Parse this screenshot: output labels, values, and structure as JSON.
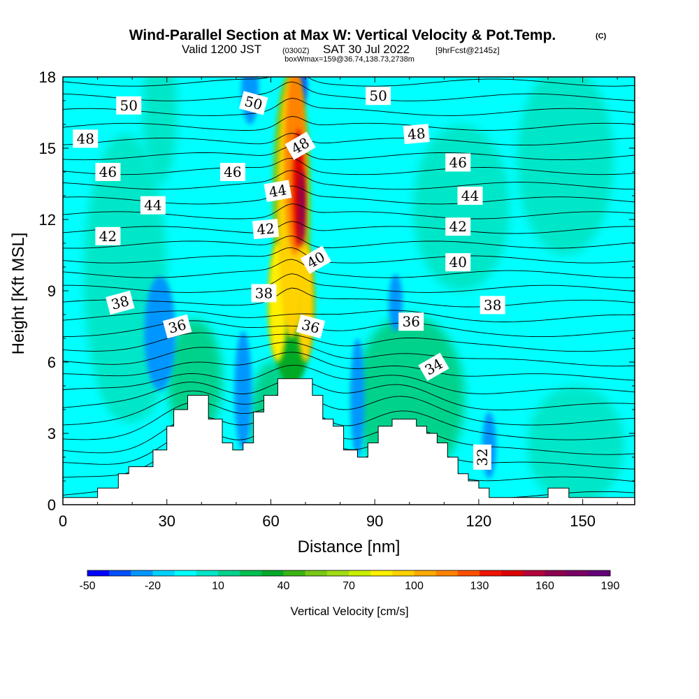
{
  "title": {
    "main": "Wind-Parallel Section at Max W: Vertical Velocity & Pot.Temp.",
    "copyright": "(C)",
    "valid_prefix": "Valid 1200 JST",
    "valid_utc": "(0300Z)",
    "valid_date": "SAT 30 Jul 2022",
    "forecast": "[9hrFcst@2145z]",
    "boxinfo": "boxWmax=159@36.74,138.73,2738m"
  },
  "chart_data": {
    "type": "heatmap",
    "xlabel": "Distance [nm]",
    "ylabel": "Height [Kft MSL]",
    "xlim": [
      0,
      165
    ],
    "ylim": [
      0,
      18
    ],
    "xticks": [
      0,
      30,
      60,
      90,
      120,
      150
    ],
    "yticks": [
      0,
      3,
      6,
      9,
      12,
      15,
      18
    ],
    "colorbar": {
      "label": "Vertical Velocity [cm/s]",
      "tick_labels": [
        "-50",
        "-20",
        "10",
        "40",
        "70",
        "100",
        "130",
        "160",
        "190"
      ],
      "colors": [
        "#0000ff",
        "#0050ff",
        "#0096ff",
        "#00d2ff",
        "#00ffff",
        "#00e6c8",
        "#00d28c",
        "#00be50",
        "#00aa28",
        "#3cb414",
        "#78c814",
        "#a0dc14",
        "#c8f000",
        "#fff000",
        "#ffd200",
        "#ffaa00",
        "#ff8200",
        "#ff5000",
        "#f01400",
        "#dc0000",
        "#b4003c",
        "#8c0050",
        "#780064",
        "#640078"
      ]
    },
    "terrain_kft": [
      [
        0,
        0.3
      ],
      [
        10,
        0.3
      ],
      [
        10,
        0.7
      ],
      [
        16,
        0.7
      ],
      [
        16,
        1.3
      ],
      [
        19,
        1.3
      ],
      [
        19,
        1.6
      ],
      [
        26,
        1.6
      ],
      [
        26,
        2.3
      ],
      [
        30,
        2.3
      ],
      [
        30,
        3.3
      ],
      [
        32,
        3.3
      ],
      [
        32,
        4.0
      ],
      [
        36,
        4.0
      ],
      [
        36,
        4.6
      ],
      [
        42,
        4.6
      ],
      [
        42,
        3.6
      ],
      [
        46,
        3.6
      ],
      [
        46,
        2.6
      ],
      [
        49,
        2.6
      ],
      [
        49,
        2.3
      ],
      [
        52,
        2.3
      ],
      [
        52,
        2.6
      ],
      [
        55,
        2.6
      ],
      [
        55,
        3.9
      ],
      [
        58,
        3.9
      ],
      [
        58,
        4.6
      ],
      [
        62,
        4.6
      ],
      [
        62,
        5.3
      ],
      [
        72,
        5.3
      ],
      [
        72,
        4.6
      ],
      [
        75,
        4.6
      ],
      [
        75,
        3.6
      ],
      [
        78,
        3.6
      ],
      [
        78,
        3.3
      ],
      [
        81,
        3.3
      ],
      [
        81,
        2.3
      ],
      [
        85,
        2.3
      ],
      [
        85,
        2.0
      ],
      [
        88,
        2.0
      ],
      [
        88,
        2.6
      ],
      [
        91,
        2.6
      ],
      [
        91,
        3.3
      ],
      [
        95,
        3.3
      ],
      [
        95,
        3.6
      ],
      [
        102,
        3.6
      ],
      [
        102,
        3.3
      ],
      [
        105,
        3.3
      ],
      [
        105,
        3.0
      ],
      [
        108,
        3.0
      ],
      [
        108,
        2.6
      ],
      [
        111,
        2.6
      ],
      [
        111,
        2.0
      ],
      [
        114,
        2.0
      ],
      [
        114,
        1.3
      ],
      [
        117,
        1.3
      ],
      [
        117,
        1.0
      ],
      [
        120,
        1.0
      ],
      [
        120,
        0.7
      ],
      [
        123,
        0.7
      ],
      [
        123,
        0.3
      ],
      [
        140,
        0.3
      ],
      [
        140,
        0.7
      ],
      [
        146,
        0.7
      ],
      [
        146,
        0.3
      ],
      [
        165,
        0.3
      ]
    ],
    "contour_labels": [
      {
        "text": "50",
        "x": 19,
        "y": 16.8,
        "rot": 0
      },
      {
        "text": "50",
        "x": 55,
        "y": 16.9,
        "rot": 15
      },
      {
        "text": "50",
        "x": 91,
        "y": 17.2,
        "rot": 0
      },
      {
        "text": "48",
        "x": 6.5,
        "y": 15.4,
        "rot": 0
      },
      {
        "text": "48",
        "x": 68.5,
        "y": 15.1,
        "rot": -30
      },
      {
        "text": "48",
        "x": 102,
        "y": 15.6,
        "rot": -5
      },
      {
        "text": "46",
        "x": 13,
        "y": 14.0,
        "rot": 0
      },
      {
        "text": "46",
        "x": 49,
        "y": 14.0,
        "rot": 0
      },
      {
        "text": "46",
        "x": 114,
        "y": 14.4,
        "rot": 0
      },
      {
        "text": "44",
        "x": 26,
        "y": 12.6,
        "rot": 0
      },
      {
        "text": "44",
        "x": 62,
        "y": 13.2,
        "rot": -10
      },
      {
        "text": "44",
        "x": 117.5,
        "y": 13.0,
        "rot": 0
      },
      {
        "text": "42",
        "x": 13,
        "y": 11.3,
        "rot": 0
      },
      {
        "text": "42",
        "x": 58.5,
        "y": 11.6,
        "rot": -5
      },
      {
        "text": "42",
        "x": 114,
        "y": 11.7,
        "rot": 0
      },
      {
        "text": "40",
        "x": 73,
        "y": 10.3,
        "rot": -30
      },
      {
        "text": "40",
        "x": 114,
        "y": 10.2,
        "rot": 0
      },
      {
        "text": "38",
        "x": 16.5,
        "y": 8.5,
        "rot": -15
      },
      {
        "text": "38",
        "x": 58,
        "y": 8.9,
        "rot": 0
      },
      {
        "text": "38",
        "x": 124,
        "y": 8.4,
        "rot": 0
      },
      {
        "text": "36",
        "x": 33,
        "y": 7.5,
        "rot": -15
      },
      {
        "text": "36",
        "x": 71.5,
        "y": 7.5,
        "rot": 15
      },
      {
        "text": "36",
        "x": 100.5,
        "y": 7.7,
        "rot": 0
      },
      {
        "text": "34",
        "x": 107,
        "y": 5.8,
        "rot": -30
      },
      {
        "text": "32",
        "x": 121,
        "y": 2.0,
        "rot": -90
      }
    ]
  }
}
